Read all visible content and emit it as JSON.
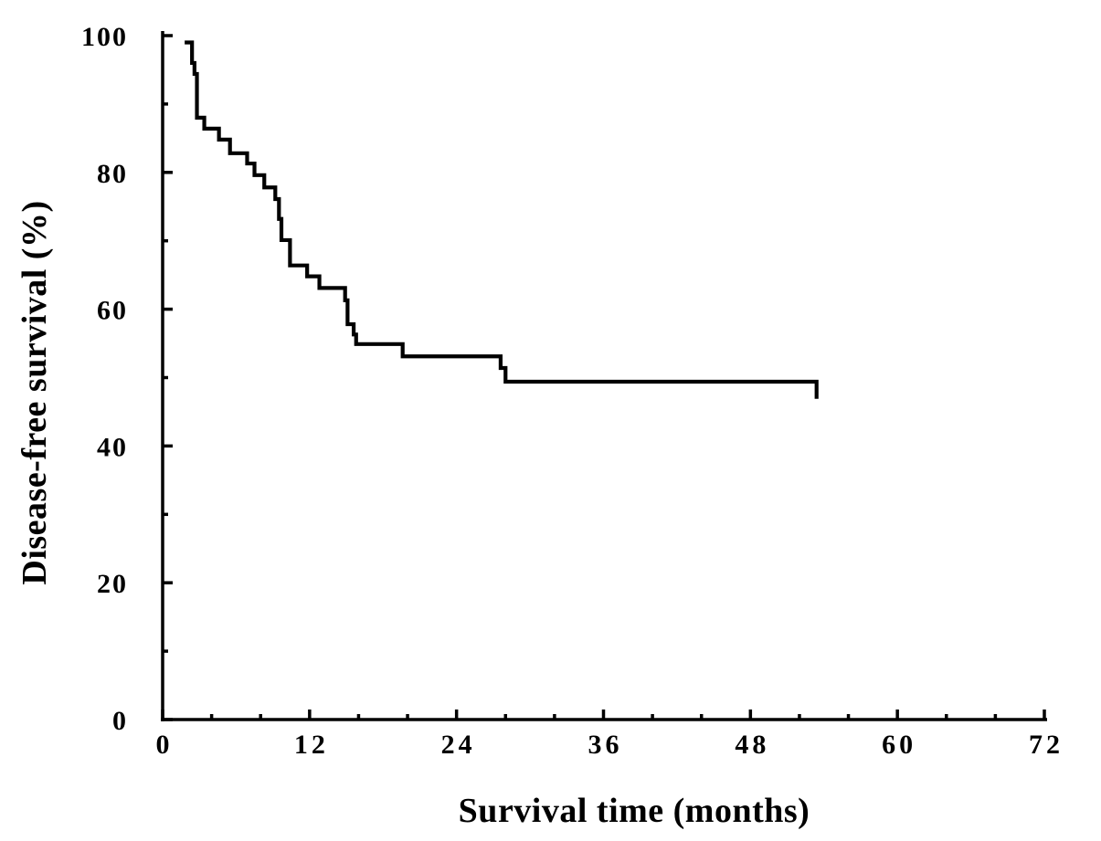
{
  "figure": {
    "background_color": "#ffffff",
    "ink_color": "#000000"
  },
  "chart_data": {
    "type": "line",
    "subtype": "kaplan-meier-step-curve",
    "title": "",
    "xlabel": "Survival time (months)",
    "ylabel": "Disease-free survival (%)",
    "xlim": [
      0,
      72
    ],
    "ylim": [
      0,
      100
    ],
    "x_major_ticks": [
      0,
      12,
      24,
      36,
      48,
      60,
      72
    ],
    "x_minor_ticks": [
      4,
      8,
      16,
      20,
      28,
      32,
      40,
      44,
      52,
      56,
      64,
      68
    ],
    "y_major_ticks": [
      0,
      20,
      40,
      60,
      80,
      100
    ],
    "y_minor_ticks": [
      10,
      30,
      50,
      70,
      90
    ],
    "grid": false,
    "legend": null,
    "series": [
      {
        "name": "Disease-free survival",
        "color": "#000000",
        "start": {
          "time": 1.8,
          "survival": 99.0
        },
        "steps": [
          [
            2.4,
            96.0
          ],
          [
            2.6,
            94.4
          ],
          [
            2.8,
            88.0
          ],
          [
            3.4,
            86.4
          ],
          [
            4.6,
            84.8
          ],
          [
            5.5,
            82.8
          ],
          [
            6.9,
            81.3
          ],
          [
            7.5,
            79.6
          ],
          [
            8.3,
            77.8
          ],
          [
            9.2,
            76.1
          ],
          [
            9.5,
            73.2
          ],
          [
            9.7,
            70.1
          ],
          [
            10.4,
            66.4
          ],
          [
            11.8,
            64.8
          ],
          [
            12.8,
            63.1
          ],
          [
            14.9,
            61.3
          ],
          [
            15.1,
            57.8
          ],
          [
            15.6,
            56.3
          ],
          [
            15.8,
            54.9
          ],
          [
            19.6,
            53.1
          ],
          [
            27.6,
            51.4
          ],
          [
            28.0,
            49.4
          ]
        ],
        "end": {
          "time": 53.4,
          "survival": 49.4,
          "terminal_tick_to": 46.9
        }
      }
    ]
  }
}
